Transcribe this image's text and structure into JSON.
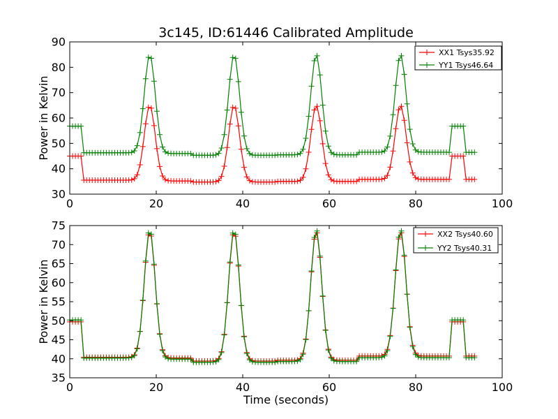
{
  "chart_data": {
    "type": "line",
    "title": "3c145, ID:61446 Calibrated Amplitude",
    "panels": [
      {
        "xlabel": "",
        "ylabel": "Power in Kelvin",
        "xlim": [
          0,
          100
        ],
        "ylim": [
          30,
          90
        ],
        "xticks": [
          0,
          20,
          40,
          60,
          80,
          100
        ],
        "yticks": [
          30,
          40,
          50,
          60,
          70,
          80,
          90
        ],
        "legend_position": "top-right",
        "series": [
          {
            "name": "XX1 Tsys35.92",
            "color": "#ff0000",
            "params": {
              "base": [
                35.5,
                35.2,
                34.8,
                35.0,
                35.8
              ],
              "off": 45.0,
              "peak": 65.0
            }
          },
          {
            "name": "YY1 Tsys46.64",
            "color": "#008000",
            "params": {
              "base": [
                46.3,
                46.0,
                45.3,
                45.5,
                46.5
              ],
              "off": 56.8,
              "peak": 85.0
            }
          }
        ]
      },
      {
        "xlabel": "Time (seconds)",
        "ylabel": "Power in Kelvin",
        "xlim": [
          0,
          100
        ],
        "ylim": [
          35,
          75
        ],
        "xticks": [
          0,
          20,
          40,
          60,
          80,
          100
        ],
        "yticks": [
          35,
          40,
          45,
          50,
          55,
          60,
          65,
          70,
          75
        ],
        "legend_position": "top-right",
        "series": [
          {
            "name": "XX2 Tsys40.60",
            "color": "#ff0000",
            "params": {
              "base": [
                40.4,
                40.2,
                39.4,
                39.6,
                40.7
              ],
              "off": 49.7,
              "peak": 73.5
            }
          },
          {
            "name": "YY2 Tsys40.31",
            "color": "#008000",
            "params": {
              "base": [
                40.2,
                39.9,
                39.1,
                39.3,
                40.3
              ],
              "off": 50.2,
              "peak": 74.0
            }
          }
        ]
      }
    ],
    "time_samples": {
      "start": 0,
      "end": 94,
      "step": 0.65
    },
    "peak_times": [
      18.5,
      38.0,
      57.0,
      76.5
    ],
    "peak_sigma": 1.0,
    "off_intervals": [
      [
        0,
        2.8
      ],
      [
        88.0,
        91.0
      ]
    ],
    "grid": false
  }
}
